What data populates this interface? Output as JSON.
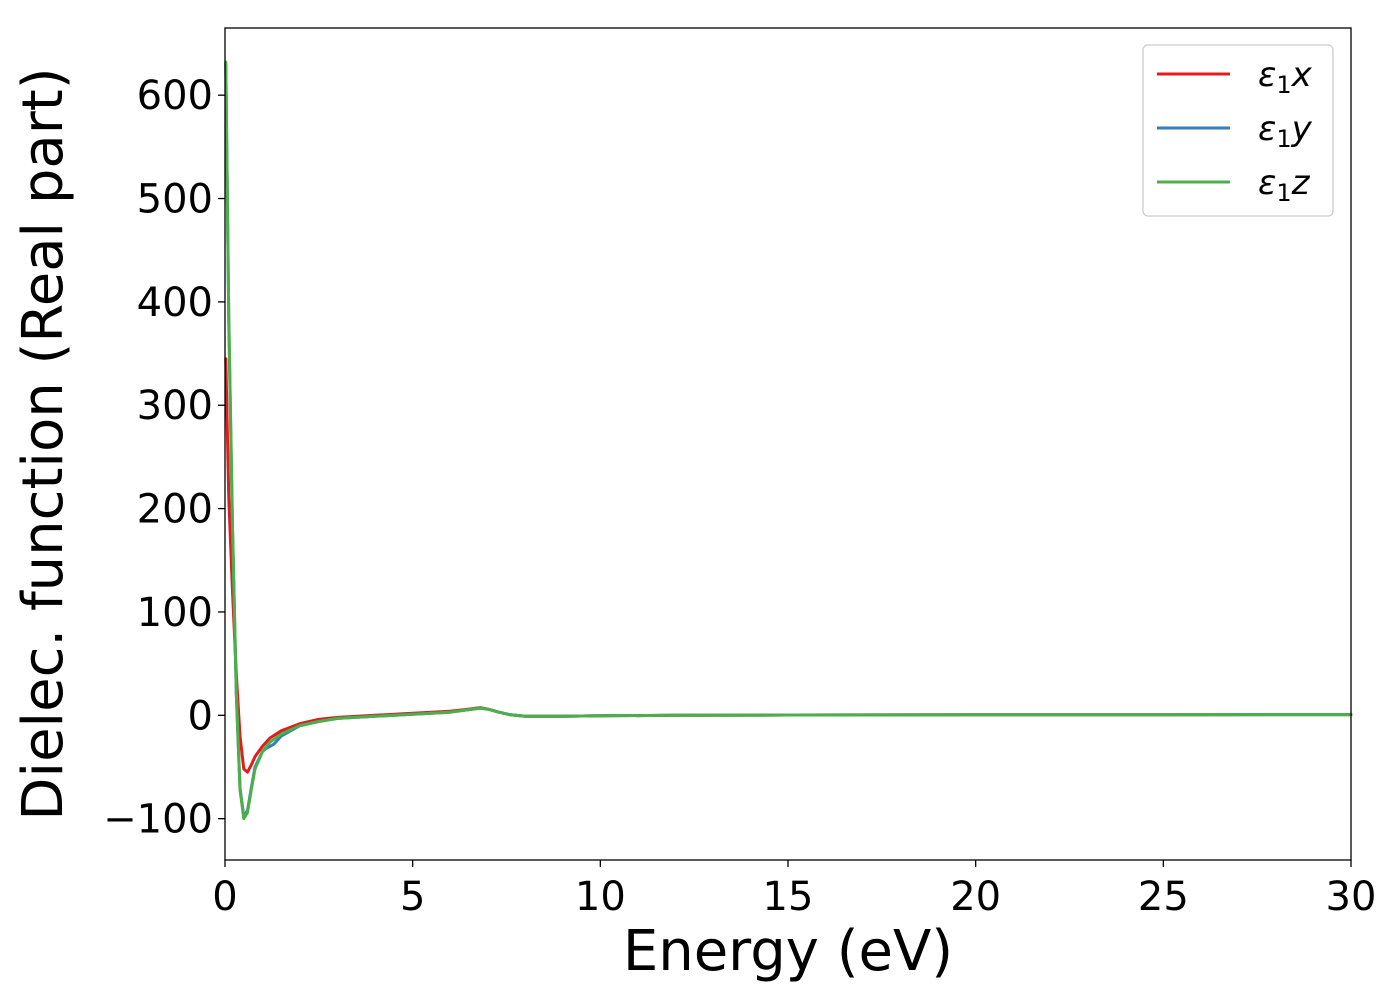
{
  "chart_data": {
    "type": "line",
    "xlabel": "Energy (eV)",
    "ylabel": "Dielec. function (Real part)",
    "xlim": [
      0,
      30
    ],
    "ylim": [
      -140,
      665
    ],
    "xticks": [
      0,
      5,
      10,
      15,
      20,
      25,
      30
    ],
    "xtick_labels": [
      "0",
      "5",
      "10",
      "15",
      "20",
      "25",
      "30"
    ],
    "yticks": [
      -100,
      0,
      100,
      200,
      300,
      400,
      500,
      600
    ],
    "ytick_labels": [
      "−100",
      "0",
      "100",
      "200",
      "300",
      "400",
      "500",
      "600"
    ],
    "grid": false,
    "legend_position": "top-right",
    "series": [
      {
        "name": "ε₁x",
        "legend": {
          "symbol": "ε",
          "sub": "1",
          "var": "x"
        },
        "color": "#e41a1c",
        "x": [
          0.02,
          0.1,
          0.2,
          0.3,
          0.4,
          0.5,
          0.6,
          0.7,
          0.8,
          1.0,
          1.2,
          1.5,
          2.0,
          2.5,
          3.0,
          4.0,
          5.0,
          6.0,
          6.5,
          6.8,
          7.0,
          7.3,
          7.6,
          8.0,
          9.0,
          10.0,
          12.0,
          15.0,
          20.0,
          25.0,
          30.0
        ],
        "y": [
          345,
          210,
          120,
          40,
          -20,
          -52,
          -55,
          -48,
          -40,
          -30,
          -22,
          -15,
          -8,
          -4,
          -2,
          0,
          2,
          4,
          6,
          7.5,
          6,
          3,
          0.5,
          -1,
          -1,
          -0.5,
          0,
          0.3,
          0.5,
          0.6,
          0.7
        ]
      },
      {
        "name": "ε₁y",
        "legend": {
          "symbol": "ε",
          "sub": "1",
          "var": "y"
        },
        "color": "#377eb8",
        "x": [
          0.02,
          0.1,
          0.2,
          0.3,
          0.4,
          0.5,
          0.6,
          0.7,
          0.8,
          1.0,
          1.1,
          1.3,
          1.5,
          2.0,
          2.5,
          3.0,
          4.0,
          5.0,
          6.0,
          6.5,
          6.8,
          7.0,
          7.3,
          7.6,
          8.0,
          9.0,
          10.0,
          12.0,
          15.0,
          20.0,
          25.0,
          30.0
        ],
        "y": [
          630,
          380,
          180,
          20,
          -70,
          -98,
          -92,
          -70,
          -50,
          -35,
          -32,
          -28,
          -20,
          -10,
          -6,
          -3,
          -1,
          1,
          3,
          5.5,
          7,
          6,
          3,
          0.5,
          -1,
          -1,
          -0.5,
          0,
          0.3,
          0.5,
          0.6,
          0.7
        ]
      },
      {
        "name": "ε₁z",
        "legend": {
          "symbol": "ε",
          "sub": "1",
          "var": "z"
        },
        "color": "#4daf4a",
        "x": [
          0.02,
          0.1,
          0.2,
          0.3,
          0.4,
          0.5,
          0.6,
          0.7,
          0.8,
          1.0,
          1.2,
          1.5,
          2.0,
          2.5,
          3.0,
          4.0,
          5.0,
          6.0,
          6.5,
          6.8,
          7.0,
          7.3,
          7.6,
          8.0,
          9.0,
          10.0,
          12.0,
          15.0,
          20.0,
          25.0,
          30.0
        ],
        "y": [
          632,
          385,
          185,
          22,
          -72,
          -100,
          -94,
          -72,
          -52,
          -35,
          -26,
          -18,
          -10,
          -6,
          -3,
          -1,
          1,
          3,
          5.5,
          7,
          6,
          3,
          0.5,
          -1,
          -1,
          -0.5,
          0,
          0.3,
          0.5,
          0.6,
          0.7
        ]
      }
    ]
  }
}
